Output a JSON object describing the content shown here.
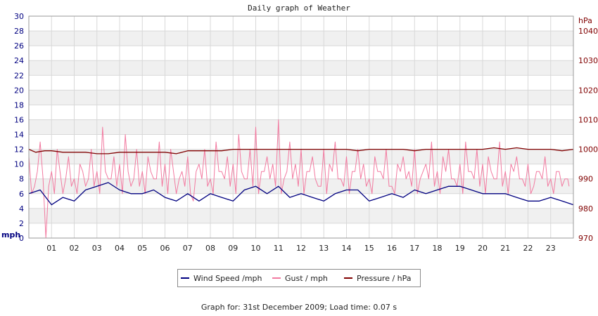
{
  "chart_data": {
    "type": "line",
    "title": "Daily graph of Weather",
    "y_left_label": "mph",
    "y_right_label": "hPa",
    "y_left_ticks": [
      "0",
      "2",
      "4",
      "6",
      "8",
      "10",
      "12",
      "14",
      "16",
      "18",
      "20",
      "22",
      "24",
      "26",
      "28",
      "30"
    ],
    "y_right_ticks": [
      "970",
      "980",
      "990",
      "1000",
      "1010",
      "1020",
      "1030",
      "1040"
    ],
    "x_ticks": [
      "01",
      "02",
      "03",
      "04",
      "05",
      "06",
      "07",
      "08",
      "09",
      "10",
      "11",
      "12",
      "13",
      "14",
      "15",
      "16",
      "17",
      "18",
      "19",
      "20",
      "21",
      "22",
      "23"
    ],
    "ylim_left": [
      0,
      30
    ],
    "ylim_right": [
      970,
      1045
    ],
    "xlim_hours": [
      0,
      24
    ],
    "grid": true,
    "legend_position": "bottom-center",
    "colors": {
      "wind": "#000080",
      "gust": "#f27aa0",
      "pressure": "#800000",
      "left_axis_text": "#000080",
      "right_axis_text": "#800000",
      "band": "#f0f0f0"
    },
    "series": [
      {
        "name": "Wind Speed /mph",
        "axis": "left",
        "x": [
          0,
          0.5,
          1,
          1.5,
          2,
          2.5,
          3,
          3.5,
          4,
          4.5,
          5,
          5.5,
          6,
          6.5,
          7,
          7.5,
          8,
          8.5,
          9,
          9.5,
          10,
          10.5,
          11,
          11.5,
          12,
          12.5,
          13,
          13.5,
          14,
          14.5,
          15,
          15.5,
          16,
          16.5,
          17,
          17.5,
          18,
          18.5,
          19,
          19.5,
          20,
          20.5,
          21,
          21.5,
          22,
          22.5,
          23,
          23.5,
          24
        ],
        "values": [
          6,
          6.5,
          4.5,
          5.5,
          5,
          6.5,
          7,
          7.5,
          6.5,
          6,
          6,
          6.5,
          5.5,
          5,
          6,
          5,
          6,
          5.5,
          5,
          6.5,
          7,
          6,
          7,
          5.5,
          6,
          5.5,
          5,
          6,
          6.5,
          6.5,
          5,
          5.5,
          6,
          5.5,
          6.5,
          6,
          6.5,
          7,
          7,
          6.5,
          6,
          6,
          6,
          5.5,
          5,
          5,
          5.5,
          5,
          4.5
        ]
      },
      {
        "name": "Gust / mph",
        "axis": "left",
        "x": [
          0,
          0.25,
          0.5,
          0.75,
          1,
          1.25,
          1.5,
          1.75,
          2,
          2.25,
          2.5,
          2.75,
          3,
          3.25,
          3.5,
          3.75,
          4,
          4.25,
          4.5,
          4.75,
          5,
          5.25,
          5.5,
          5.75,
          6,
          6.25,
          6.5,
          6.75,
          7,
          7.25,
          7.5,
          7.75,
          8,
          8.25,
          8.5,
          8.75,
          9,
          9.25,
          9.5,
          9.75,
          10,
          10.25,
          10.5,
          10.75,
          11,
          11.25,
          11.5,
          11.75,
          12,
          12.25,
          12.5,
          12.75,
          13,
          13.25,
          13.5,
          13.75,
          14,
          14.25,
          14.5,
          14.75,
          15,
          15.25,
          15.5,
          15.75,
          16,
          16.25,
          16.5,
          16.75,
          17,
          17.25,
          17.5,
          17.75,
          18,
          18.25,
          18.5,
          18.75,
          19,
          19.25,
          19.5,
          19.75,
          20,
          20.25,
          20.5,
          20.75,
          21,
          21.25,
          21.5,
          21.75,
          22,
          22.25,
          22.5,
          22.75,
          23,
          23.25,
          23.5,
          23.75
        ],
        "values": [
          11,
          7,
          13,
          0,
          9,
          12,
          6,
          11,
          8,
          10,
          7,
          12,
          9,
          15,
          8,
          11,
          10,
          14,
          7,
          12,
          9,
          11,
          8,
          13,
          10,
          12,
          6,
          9,
          11,
          5,
          10,
          12,
          8,
          13,
          9,
          11,
          10,
          14,
          8,
          12,
          15,
          9,
          11,
          10,
          16,
          8,
          13,
          10,
          12,
          9,
          11,
          7,
          12,
          10,
          13,
          8,
          11,
          9,
          12,
          10,
          8,
          11,
          9,
          12,
          7,
          10,
          11,
          9,
          12,
          8,
          10,
          13,
          9,
          11,
          12,
          8,
          10,
          13,
          9,
          12,
          10,
          11,
          8,
          13,
          9,
          10,
          11,
          8,
          10,
          7,
          9,
          11,
          8,
          9,
          7,
          8
        ],
        "style": "spiky"
      },
      {
        "name": "Pressure / hPa",
        "axis": "right",
        "x": [
          0,
          0.3,
          0.7,
          1,
          1.5,
          2,
          2.5,
          3,
          3.5,
          4,
          4.5,
          5,
          5.5,
          6,
          6.5,
          7,
          7.5,
          8,
          8.5,
          9,
          9.5,
          10,
          10.5,
          11,
          11.5,
          12,
          12.5,
          13,
          13.5,
          14,
          14.5,
          15,
          15.5,
          16,
          16.5,
          17,
          17.5,
          18,
          18.5,
          19,
          19.5,
          20,
          20.5,
          21,
          21.5,
          22,
          22.5,
          23,
          23.5,
          24
        ],
        "values": [
          1000,
          999,
          999.5,
          999.5,
          999,
          999,
          999,
          998.5,
          998.5,
          999,
          999,
          999,
          999,
          999,
          998.5,
          999.5,
          999.5,
          999.5,
          999.5,
          1000,
          1000,
          1000,
          1000,
          1000,
          1000,
          1000,
          1000,
          1000,
          1000,
          1000,
          999.5,
          1000,
          1000,
          1000,
          1000,
          999.5,
          1000,
          1000,
          1000,
          1000,
          1000,
          1000,
          1000.5,
          1000,
          1000.5,
          1000,
          1000,
          1000,
          999.5,
          1000
        ]
      }
    ]
  },
  "legend": {
    "wind_label": "Wind Speed /mph",
    "gust_label": "Gust / mph",
    "pressure_label": "Pressure / hPa"
  },
  "footer_text": "Graph for: 31st December 2009; Load time: 0.07 s"
}
